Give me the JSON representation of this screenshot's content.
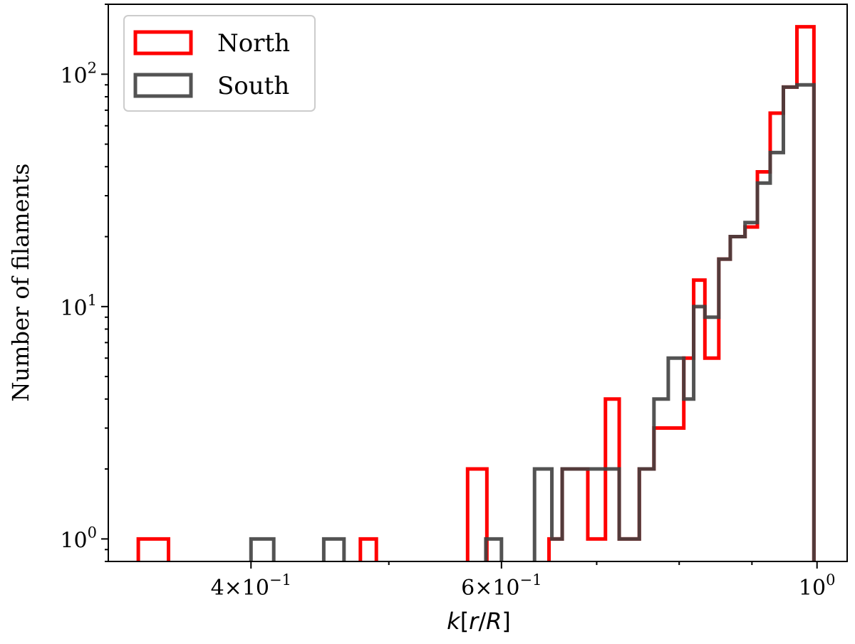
{
  "chart_data": {
    "type": "histogram",
    "title": "",
    "xlabel": "k[r/R]",
    "ylabel": "Number of filaments",
    "x_scale": "log",
    "y_scale": "log",
    "xlim": [
      0.3175,
      1.05
    ],
    "ylim": [
      0.8,
      200
    ],
    "x_tick_labels": [
      {
        "value": 0.4,
        "mantissa": "4",
        "exponent": "−1"
      },
      {
        "value": 0.6,
        "mantissa": "6",
        "exponent": "−1"
      },
      {
        "value": 1.0,
        "mantissa": "",
        "exponent": "0"
      }
    ],
    "y_tick_labels": [
      {
        "value": 1,
        "base": "10",
        "exponent": "0"
      },
      {
        "value": 10,
        "base": "10",
        "exponent": "1"
      },
      {
        "value": 100,
        "base": "10",
        "exponent": "2"
      }
    ],
    "grid": false,
    "legend_position": "top-left",
    "series": [
      {
        "name": "North",
        "color": "#ff0000",
        "bins": [
          {
            "x0": 0.3333,
            "x1": 0.35,
            "count": 1
          },
          {
            "x0": 0.4775,
            "x1": 0.49,
            "count": 1
          },
          {
            "x0": 0.568,
            "x1": 0.586,
            "count": 2
          },
          {
            "x0": 0.648,
            "x1": 0.662,
            "count": 1
          },
          {
            "x0": 0.662,
            "x1": 0.69,
            "count": 2
          },
          {
            "x0": 0.69,
            "x1": 0.71,
            "count": 1
          },
          {
            "x0": 0.71,
            "x1": 0.726,
            "count": 4
          },
          {
            "x0": 0.726,
            "x1": 0.75,
            "count": 1
          },
          {
            "x0": 0.75,
            "x1": 0.768,
            "count": 2
          },
          {
            "x0": 0.768,
            "x1": 0.786,
            "count": 3
          },
          {
            "x0": 0.786,
            "x1": 0.806,
            "count": 3
          },
          {
            "x0": 0.806,
            "x1": 0.819,
            "count": 6
          },
          {
            "x0": 0.819,
            "x1": 0.834,
            "count": 13
          },
          {
            "x0": 0.834,
            "x1": 0.853,
            "count": 6
          },
          {
            "x0": 0.853,
            "x1": 0.869,
            "count": 16
          },
          {
            "x0": 0.869,
            "x1": 0.89,
            "count": 20
          },
          {
            "x0": 0.89,
            "x1": 0.908,
            "count": 22
          },
          {
            "x0": 0.908,
            "x1": 0.927,
            "count": 38
          },
          {
            "x0": 0.927,
            "x1": 0.947,
            "count": 68
          },
          {
            "x0": 0.947,
            "x1": 0.968,
            "count": 88
          },
          {
            "x0": 0.968,
            "x1": 0.995,
            "count": 160
          }
        ]
      },
      {
        "name": "South",
        "color": "#404040",
        "bins": [
          {
            "x0": 0.4,
            "x1": 0.415,
            "count": 1
          },
          {
            "x0": 0.45,
            "x1": 0.465,
            "count": 1
          },
          {
            "x0": 0.585,
            "x1": 0.6,
            "count": 1
          },
          {
            "x0": 0.633,
            "x1": 0.651,
            "count": 2
          },
          {
            "x0": 0.651,
            "x1": 0.662,
            "count": 1
          },
          {
            "x0": 0.662,
            "x1": 0.726,
            "count": 2
          },
          {
            "x0": 0.726,
            "x1": 0.75,
            "count": 1
          },
          {
            "x0": 0.75,
            "x1": 0.768,
            "count": 2
          },
          {
            "x0": 0.768,
            "x1": 0.786,
            "count": 4
          },
          {
            "x0": 0.786,
            "x1": 0.806,
            "count": 6
          },
          {
            "x0": 0.806,
            "x1": 0.819,
            "count": 4
          },
          {
            "x0": 0.819,
            "x1": 0.834,
            "count": 10
          },
          {
            "x0": 0.834,
            "x1": 0.853,
            "count": 9
          },
          {
            "x0": 0.853,
            "x1": 0.869,
            "count": 16
          },
          {
            "x0": 0.869,
            "x1": 0.89,
            "count": 20
          },
          {
            "x0": 0.89,
            "x1": 0.908,
            "count": 23
          },
          {
            "x0": 0.908,
            "x1": 0.927,
            "count": 34
          },
          {
            "x0": 0.927,
            "x1": 0.947,
            "count": 46
          },
          {
            "x0": 0.947,
            "x1": 0.968,
            "count": 88
          },
          {
            "x0": 0.968,
            "x1": 0.995,
            "count": 90
          }
        ]
      }
    ]
  }
}
